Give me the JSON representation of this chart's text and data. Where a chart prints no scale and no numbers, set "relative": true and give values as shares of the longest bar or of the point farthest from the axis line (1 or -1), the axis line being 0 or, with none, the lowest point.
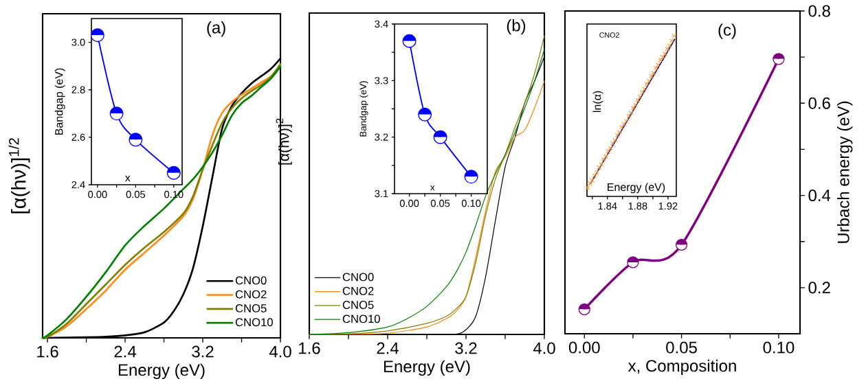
{
  "chart_data": [
    {
      "type": "line",
      "title": "(a)",
      "xlabel": "Energy (eV)",
      "ylabel": "[α(hν)]$^{1/2}$",
      "relative": true,
      "legend": "bottom right",
      "xlim": [
        1.55,
        4.0
      ],
      "xticks": [
        1.6,
        {
          "value": 2.0,
          "label": null
        },
        2.4,
        {
          "value": 2.8,
          "label": null
        },
        3.2,
        {
          "value": 3.6,
          "label": null
        },
        {
          "value": 4.0,
          "label": "4.0"
        }
      ],
      "series": [
        {
          "name": "CNO0",
          "color": "#000000",
          "x": [
            1.55,
            1.8,
            2.0,
            2.2,
            2.4,
            2.6,
            2.8,
            2.9,
            3.0,
            3.1,
            3.2,
            3.3,
            3.4,
            3.5,
            3.6,
            3.7,
            3.8,
            3.9,
            4.0
          ],
          "values": [
            0,
            0.001,
            0.002,
            0.004,
            0.009,
            0.02,
            0.055,
            0.095,
            0.156,
            0.25,
            0.4,
            0.577,
            0.75,
            0.83,
            0.875,
            0.91,
            0.936,
            0.962,
            1.0
          ]
        },
        {
          "name": "CNO2",
          "color": "#ff8c1a",
          "x": [
            1.55,
            1.6,
            1.8,
            2.0,
            2.2,
            2.4,
            2.6,
            2.8,
            3.0,
            3.1,
            3.2,
            3.3,
            3.4,
            3.5,
            3.6,
            3.7,
            3.8,
            3.9,
            4.0
          ],
          "values": [
            0,
            0.003,
            0.042,
            0.103,
            0.169,
            0.244,
            0.305,
            0.366,
            0.436,
            0.498,
            0.603,
            0.726,
            0.805,
            0.844,
            0.87,
            0.892,
            0.914,
            0.936,
            0.975
          ]
        },
        {
          "name": "CNO5",
          "color": "#808000",
          "x": [
            1.55,
            1.6,
            1.8,
            2.0,
            2.2,
            2.4,
            2.6,
            2.8,
            3.0,
            3.1,
            3.2,
            3.3,
            3.4,
            3.5,
            3.6,
            3.7,
            3.8,
            3.9,
            4.0
          ],
          "values": [
            0,
            0.003,
            0.051,
            0.121,
            0.191,
            0.261,
            0.323,
            0.379,
            0.445,
            0.507,
            0.603,
            0.69,
            0.77,
            0.822,
            0.857,
            0.883,
            0.905,
            0.932,
            0.98
          ]
        },
        {
          "name": "CNO10",
          "color": "#008000",
          "x": [
            1.55,
            1.6,
            1.8,
            2.0,
            2.2,
            2.4,
            2.6,
            2.8,
            3.0,
            3.1,
            3.2,
            3.3,
            3.4,
            3.5,
            3.6,
            3.7,
            3.8,
            3.9,
            4.0
          ],
          "values": [
            0,
            0.009,
            0.068,
            0.147,
            0.235,
            0.331,
            0.401,
            0.463,
            0.533,
            0.568,
            0.612,
            0.664,
            0.726,
            0.796,
            0.84,
            0.866,
            0.897,
            0.927,
            0.971
          ]
        }
      ]
    },
    {
      "type": "line",
      "xlabel": "x",
      "ylabel": "Bandgap (eV)",
      "marker": "circle",
      "xlim": [
        -0.008,
        0.111
      ],
      "ylim": [
        2.4,
        3.1
      ],
      "xticks": [
        {
          "value": 0,
          "label": "0.00"
        },
        {
          "value": 0.025,
          "label": null
        },
        0.05,
        {
          "value": 0.075,
          "label": null
        },
        {
          "value": 0.1,
          "label": "0.10"
        }
      ],
      "yticks": [
        2.4,
        2.6,
        2.8,
        {
          "value": 3.0,
          "label": "3.0"
        }
      ],
      "series": [
        {
          "color": "#0000ff",
          "x": [
            0,
            0.025,
            0.05,
            0.1
          ],
          "values": [
            3.03,
            2.7,
            2.59,
            2.45
          ]
        }
      ]
    },
    {
      "type": "line",
      "title": "(b)",
      "xlabel": "Energy (eV)",
      "ylabel": "[α(hν)]$^{2}$",
      "relative": true,
      "legend": "bottom left",
      "xlim": [
        1.6,
        4.0
      ],
      "xticks": [
        1.6,
        {
          "value": 2.0,
          "label": null
        },
        2.4,
        {
          "value": 2.8,
          "label": null
        },
        3.2,
        {
          "value": 3.6,
          "label": null
        },
        {
          "value": 4.0,
          "label": "4.0"
        }
      ],
      "series": [
        {
          "name": "CNO0",
          "color": "#000000",
          "x": [
            1.6,
            2.4,
            2.8,
            3.1,
            3.2,
            3.3,
            3.4,
            3.5,
            3.6,
            3.7,
            3.8,
            3.9,
            4.0
          ],
          "values": [
            0,
            0,
            0,
            0.001,
            0.016,
            0.061,
            0.193,
            0.381,
            0.561,
            0.66,
            0.775,
            0.848,
            0.93
          ]
        },
        {
          "name": "CNO2",
          "color": "#ff8000",
          "x": [
            1.6,
            2.0,
            2.4,
            2.8,
            3.0,
            3.1,
            3.2,
            3.3,
            3.4,
            3.5,
            3.6,
            3.7,
            3.8,
            3.9,
            4.0
          ],
          "values": [
            0,
            0.001,
            0.004,
            0.025,
            0.053,
            0.078,
            0.127,
            0.258,
            0.414,
            0.545,
            0.594,
            0.66,
            0.684,
            0.758,
            0.848
          ]
        },
        {
          "name": "CNO5",
          "color": "#808000",
          "x": [
            1.6,
            2.0,
            2.4,
            2.8,
            3.0,
            3.1,
            3.2,
            3.3,
            3.4,
            3.5,
            3.6,
            3.7,
            3.8,
            3.9,
            4.0
          ],
          "values": [
            0,
            0.002,
            0.012,
            0.037,
            0.061,
            0.086,
            0.127,
            0.242,
            0.398,
            0.52,
            0.602,
            0.693,
            0.775,
            0.873,
            1.0
          ]
        },
        {
          "name": "CNO10",
          "color": "#008000",
          "x": [
            1.6,
            2.0,
            2.4,
            2.6,
            2.8,
            3.0,
            3.1,
            3.2,
            3.3,
            3.4,
            3.5,
            3.6,
            3.7,
            3.8,
            3.9,
            4.0
          ],
          "values": [
            0,
            0.006,
            0.025,
            0.053,
            0.094,
            0.16,
            0.209,
            0.275,
            0.365,
            0.463,
            0.537,
            0.602,
            0.676,
            0.758,
            0.848,
            0.955
          ]
        }
      ]
    },
    {
      "type": "line",
      "xlabel": "x",
      "ylabel": "Bandgap (eV)",
      "marker": "circle",
      "xlim": [
        -0.024,
        0.126
      ],
      "ylim": [
        3.1,
        3.4
      ],
      "xticks": [
        {
          "value": 0,
          "label": "0.00"
        },
        {
          "value": 0.025,
          "label": null
        },
        0.05,
        {
          "value": 0.075,
          "label": null
        },
        {
          "value": 0.1,
          "label": "0.10"
        }
      ],
      "yticks": [
        3.1,
        {
          "value": 3.15,
          "label": null
        },
        3.2,
        {
          "value": 3.25,
          "label": null
        },
        3.3,
        {
          "value": 3.35,
          "label": null
        },
        3.4
      ],
      "series": [
        {
          "color": "#0000ff",
          "x": [
            0,
            0.025,
            0.05,
            0.1
          ],
          "values": [
            3.37,
            3.24,
            3.2,
            3.13
          ]
        }
      ]
    },
    {
      "type": "line",
      "title": "(c)",
      "xlabel": "x, Composition",
      "ylabel": "Urbach energy (eV)",
      "marker": "circle",
      "xlim": [
        -0.01,
        0.111
      ],
      "ylim": [
        0.1,
        0.8
      ],
      "xticks": [
        {
          "value": 0,
          "label": "0.00"
        },
        {
          "value": 0.025,
          "label": null
        },
        0.05,
        {
          "value": 0.075,
          "label": null
        },
        {
          "value": 0.1,
          "label": "0.10"
        }
      ],
      "yticks": [
        0.2,
        {
          "value": 0.3,
          "label": null
        },
        0.4,
        {
          "value": 0.5,
          "label": null
        },
        0.6,
        {
          "value": 0.7,
          "label": null
        },
        0.8
      ],
      "series": [
        {
          "color": "#800080",
          "x": [
            0,
            0.025,
            0.05,
            0.1
          ],
          "values": [
            0.153,
            0.255,
            0.293,
            0.696
          ]
        }
      ]
    },
    {
      "type": "scatter",
      "xlabel": "Energy (eV)",
      "ylabel": "ln(α)",
      "relative": true,
      "annotations": [
        "CNO2"
      ],
      "xlim": [
        1.813,
        1.931
      ],
      "xticks": [
        {
          "value": 1.82,
          "label": null
        },
        1.84,
        {
          "value": 1.86,
          "label": null
        },
        1.88,
        {
          "value": 1.9,
          "label": null
        },
        1.92
      ],
      "series": [
        {
          "color": "#ff9933",
          "marker": "cross",
          "x": [
            1.814,
            1.817,
            1.82,
            1.823,
            1.826,
            1.829,
            1.832,
            1.835,
            1.838,
            1.841,
            1.844,
            1.847,
            1.85,
            1.853,
            1.856,
            1.859,
            1.862,
            1.865,
            1.868,
            1.871,
            1.874,
            1.877,
            1.88,
            1.883,
            1.886,
            1.889,
            1.892,
            1.895,
            1.898,
            1.901,
            1.904,
            1.907,
            1.91,
            1.913,
            1.916,
            1.919,
            1.922,
            1.925,
            1.928
          ],
          "values": [
            0.054,
            0.08,
            0.1,
            0.13,
            0.15,
            0.18,
            0.2,
            0.23,
            0.25,
            0.28,
            0.3,
            0.33,
            0.35,
            0.38,
            0.4,
            0.43,
            0.45,
            0.47,
            0.5,
            0.52,
            0.55,
            0.57,
            0.6,
            0.62,
            0.65,
            0.67,
            0.7,
            0.72,
            0.75,
            0.77,
            0.8,
            0.82,
            0.85,
            0.87,
            0.89,
            0.92,
            0.94,
            0.97,
            1.0
          ]
        },
        {
          "type": "line",
          "color": "#000080",
          "marker": "none",
          "x": [
            1.8177,
            1.929
          ],
          "values": [
            0.08,
            0.98
          ]
        }
      ]
    }
  ]
}
